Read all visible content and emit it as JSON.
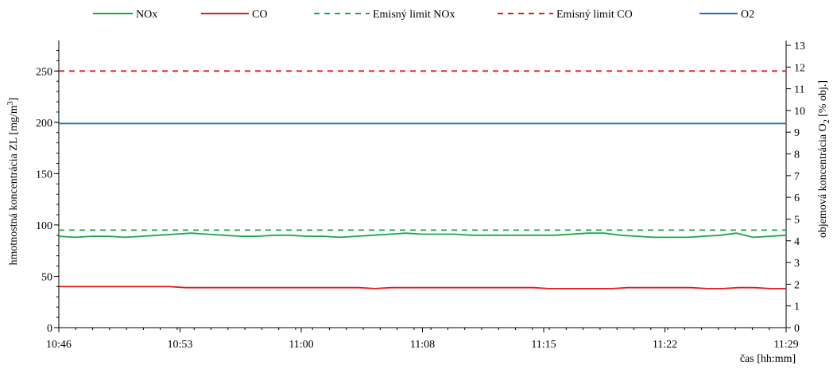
{
  "chart_data": {
    "type": "line",
    "title": "",
    "xlabel": "čas [hh:mm]",
    "ylabel_left_html": "hmotnostná koncentrácia ZL  [mg/m³]",
    "ylabel_left": {
      "main": "hmotnostná koncentrácia ZL  [mg/m",
      "sup": "3",
      "end": "]"
    },
    "ylabel_right": {
      "main": "objemová koncentrácia O",
      "sub": "2",
      "end": " [% obj.]"
    },
    "x_ticks": [
      "10:46",
      "10:53",
      "11:00",
      "11:08",
      "11:15",
      "11:22",
      "11:29"
    ],
    "xlim": [
      0,
      43
    ],
    "ylim_left": [
      0,
      275
    ],
    "yticks_left": [
      0,
      50,
      100,
      150,
      200,
      250
    ],
    "ylim_right": [
      0,
      13
    ],
    "yticks_right": [
      0,
      1,
      2,
      3,
      4,
      5,
      6,
      7,
      8,
      9,
      10,
      11,
      12,
      13
    ],
    "legend_position": "top",
    "series": [
      {
        "name": "NOx",
        "axis": "left",
        "color": "#1aa64a",
        "dash": "solid",
        "values": [
          89,
          88,
          89,
          89,
          88,
          89,
          90,
          91,
          92,
          91,
          90,
          89,
          89,
          90,
          90,
          89,
          89,
          88,
          89,
          90,
          91,
          92,
          91,
          91,
          91,
          90,
          90,
          90,
          90,
          90,
          90,
          91,
          92,
          92,
          90,
          89,
          88,
          88,
          88,
          89,
          90,
          92,
          88,
          89,
          90
        ]
      },
      {
        "name": "CO",
        "axis": "left",
        "color": "#e0191b",
        "dash": "solid",
        "values": [
          40,
          40,
          40,
          40,
          40,
          40,
          40,
          40,
          39,
          39,
          39,
          39,
          39,
          39,
          39,
          39,
          39,
          39,
          39,
          39,
          38,
          39,
          39,
          39,
          39,
          39,
          39,
          39,
          39,
          39,
          39,
          38,
          38,
          38,
          38,
          38,
          39,
          39,
          39,
          39,
          39,
          38,
          38,
          39,
          39,
          38,
          38
        ]
      },
      {
        "name": "Emisný limit NOx",
        "axis": "left",
        "color": "#1aa64a",
        "dash": "dashed",
        "values": [
          95,
          95
        ]
      },
      {
        "name": "Emisný limit CO",
        "axis": "left",
        "color": "#e0191b",
        "dash": "dashed",
        "values": [
          250,
          250
        ]
      },
      {
        "name": "O2",
        "axis": "right",
        "color": "#1f6fb5",
        "dash": "solid",
        "values": [
          9.4,
          9.4
        ]
      }
    ]
  }
}
